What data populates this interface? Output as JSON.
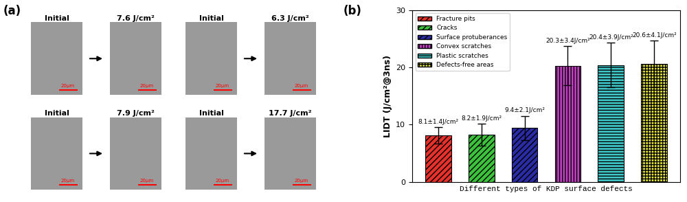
{
  "panel_labels": [
    "(a)",
    "(b)"
  ],
  "images": [
    {
      "before": "Initial",
      "after": "7.6 J/cm²",
      "scale_bar": "20μm"
    },
    {
      "before": "Initial",
      "after": "6.3 J/cm²",
      "scale_bar": "20μm"
    },
    {
      "before": "Initial",
      "after": "7.9 J/cm²",
      "scale_bar": "20μm"
    },
    {
      "before": "Initial",
      "after": "17.7 J/cm²",
      "scale_bar": "20μm"
    }
  ],
  "chart_data": {
    "type": "bar",
    "x_label": "Different types of KDP surface defects",
    "y_label": "LIDT (J/cm²@3ns)",
    "categories": [
      "Fracture pits",
      "Cracks",
      "Surface protuberances",
      "Convex scratches",
      "Plastic scratches",
      "Defects-free areas"
    ],
    "values": [
      8.1,
      8.2,
      9.4,
      20.3,
      20.4,
      20.6
    ],
    "errors": [
      1.4,
      1.9,
      2.1,
      3.4,
      3.9,
      4.1
    ],
    "value_labels": [
      "8.1±1.4J/cm²",
      "8.2±1.9J/cm²",
      "9.4±2.1J/cm²",
      "20.3±3.4J/cm²",
      "20.4±3.9J/cm²",
      "20.6±4.1J/cm²"
    ],
    "colors": [
      "#e8312a",
      "#3cc23c",
      "#2b2ba6",
      "#c040c0",
      "#40c8c8",
      "#e6e640"
    ],
    "ylim": [
      0,
      30
    ],
    "yticks": [
      0,
      10,
      20,
      30
    ],
    "data_labels": true,
    "legend": "upper left",
    "tick_labels": "y"
  }
}
